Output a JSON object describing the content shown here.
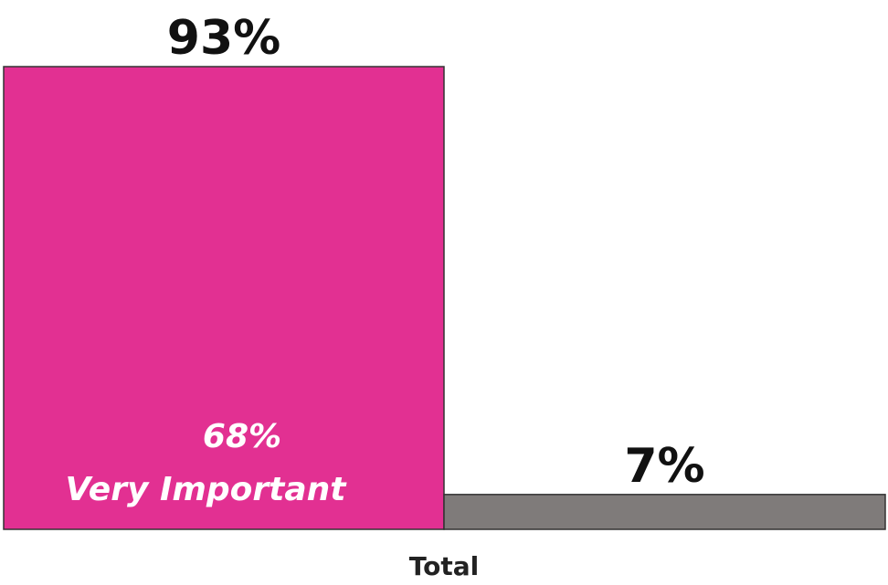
{
  "chart_data": {
    "type": "bar",
    "categories": [
      "Total"
    ],
    "series": [
      {
        "values": [
          93
        ],
        "label": "93%",
        "color": "#e23092"
      },
      {
        "values": [
          7
        ],
        "label": "7%",
        "color": "#7f7b7a"
      }
    ],
    "inner_label": {
      "value": "68%",
      "text": "Very Important"
    },
    "ylim": [
      0,
      100
    ],
    "grid": false,
    "legend": "none"
  }
}
